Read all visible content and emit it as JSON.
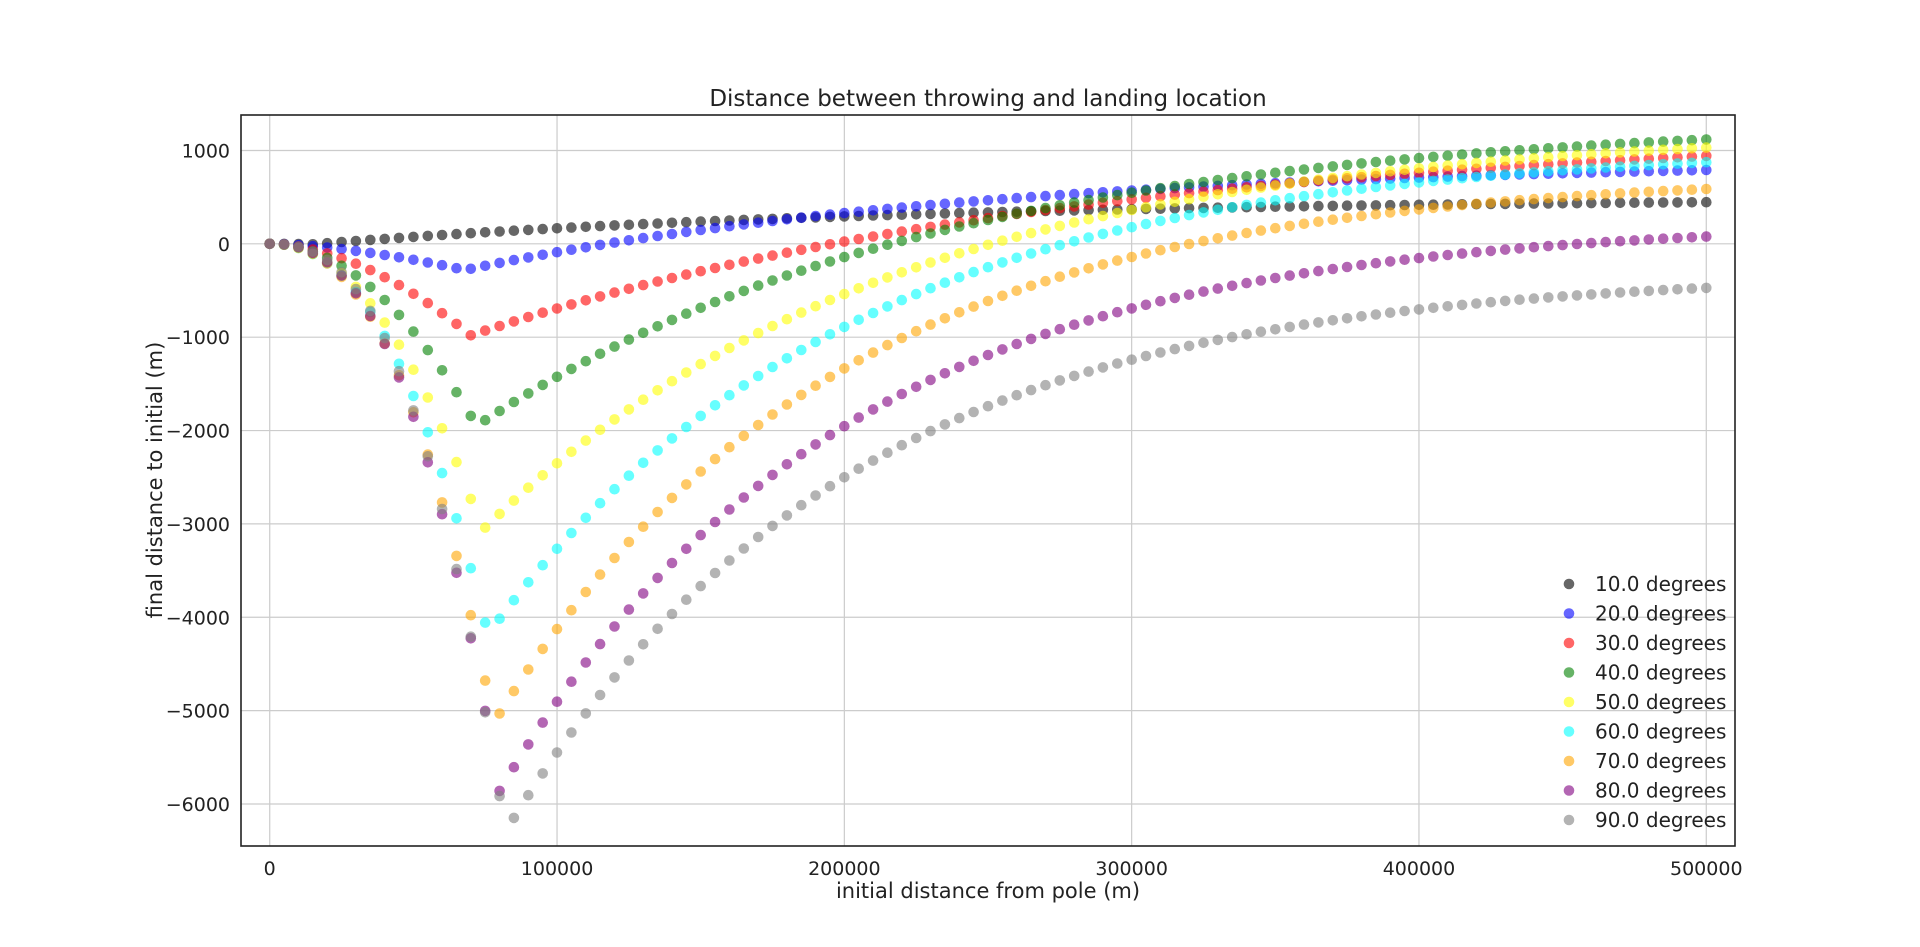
{
  "chart_data": {
    "type": "scatter",
    "title": "Distance between throwing and landing location",
    "xlabel": "initial distance from pole (m)",
    "ylabel": "final distance to initial (m)",
    "xlim": [
      -10000,
      510000
    ],
    "ylim": [
      -6450,
      1380
    ],
    "x_ticks": [
      0,
      100000,
      200000,
      300000,
      400000,
      500000
    ],
    "x_tick_labels": [
      "0",
      "100000",
      "200000",
      "300000",
      "400000",
      "500000"
    ],
    "y_ticks": [
      1000,
      0,
      -1000,
      -2000,
      -3000,
      -4000,
      -5000,
      -6000
    ],
    "y_tick_labels": [
      "1000",
      "0",
      "−1000",
      "−2000",
      "−3000",
      "−4000",
      "−5000",
      "−6000"
    ],
    "grid": true,
    "legend_position": "lower-right",
    "x_start": 0,
    "x_step": 5000,
    "series": [
      {
        "name": "10.0 degrees",
        "color": "#333333",
        "alpha": 0.75,
        "min_y": -5,
        "x_min": 15000,
        "plateau": 490,
        "rate": 5e-06,
        "shape": 1.6
      },
      {
        "name": "20.0 degrees",
        "color": "#0000ff",
        "alpha": 0.6,
        "min_y": -280,
        "x_min": 68000,
        "plateau": 900,
        "rate": 5.5e-06,
        "shape": 1.6
      },
      {
        "name": "30.0 degrees",
        "color": "#ff0000",
        "alpha": 0.6,
        "min_y": -980,
        "x_min": 70000,
        "plateau": 1250,
        "rate": 4.6e-06,
        "shape": 1.8
      },
      {
        "name": "40.0 degrees",
        "color": "#008000",
        "alpha": 0.6,
        "min_y": -1950,
        "x_min": 72000,
        "plateau": 1350,
        "rate": 6.2e-06,
        "shape": 2.0
      },
      {
        "name": "50.0 degrees",
        "color": "#ffff00",
        "alpha": 0.6,
        "min_y": -3070,
        "x_min": 74000,
        "plateau": 1250,
        "rate": 7e-06,
        "shape": 2.1
      },
      {
        "name": "60.0 degrees",
        "color": "#00ffff",
        "alpha": 0.6,
        "min_y": -4180,
        "x_min": 76000,
        "plateau": 1050,
        "rate": 8e-06,
        "shape": 2.25
      },
      {
        "name": "70.0 degrees",
        "color": "#ffa500",
        "alpha": 0.6,
        "min_y": -5130,
        "x_min": 78000,
        "plateau": 750,
        "rate": 8.5e-06,
        "shape": 2.35
      },
      {
        "name": "80.0 degrees",
        "color": "#800080",
        "alpha": 0.6,
        "min_y": -5860,
        "x_min": 80000,
        "plateau": 250,
        "rate": 8.5e-06,
        "shape": 2.45
      },
      {
        "name": "90.0 degrees",
        "color": "#808080",
        "alpha": 0.6,
        "min_y": -6300,
        "x_min": 82000,
        "plateau": -300,
        "rate": 8.5e-06,
        "shape": 2.55
      }
    ]
  }
}
